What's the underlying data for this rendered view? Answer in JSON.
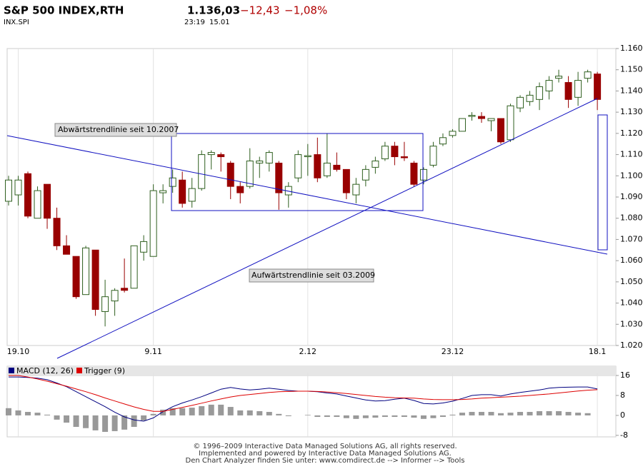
{
  "header": {
    "title": "S&P 500 INDEX,RTH",
    "symbol": "INX.SPI",
    "last": "1.136,03",
    "change": "−12,43",
    "change_pct": "−1,08%",
    "time": "23:19",
    "date": "15.01"
  },
  "chart_data": [
    {
      "type": "candlestick",
      "categories": [
        null,
        "19.10",
        null,
        null,
        null,
        null,
        null,
        null,
        null,
        null,
        null,
        null,
        null,
        null,
        null,
        "9.11",
        null,
        null,
        null,
        null,
        null,
        null,
        null,
        null,
        null,
        null,
        null,
        null,
        null,
        null,
        null,
        "2.12",
        null,
        null,
        null,
        null,
        null,
        null,
        null,
        null,
        null,
        null,
        null,
        null,
        null,
        null,
        "23.12",
        null,
        null,
        null,
        null,
        null,
        null,
        null,
        null,
        null,
        null,
        null,
        null,
        null,
        null,
        "18.1"
      ],
      "open": [
        1088,
        1091,
        1101,
        1080,
        1096,
        1080,
        1067,
        1062,
        1044,
        1065,
        1036,
        1041,
        1047,
        1047,
        1064,
        1062,
        1092,
        1095,
        1098,
        1088,
        1094,
        1110,
        1110,
        1106,
        1095,
        1095,
        1106,
        1106,
        1106,
        1091,
        1099,
        1109,
        1110,
        1100,
        1105,
        1103,
        1091,
        1098,
        1104,
        1108,
        1114,
        1109,
        1106,
        1098,
        1105,
        1115,
        1119,
        1121,
        1128,
        1128,
        1126,
        1127,
        1117,
        1132,
        1135,
        1136,
        1140,
        1146,
        1144,
        1137,
        1146,
        1148
      ],
      "high": [
        1100,
        1100,
        1102,
        1095,
        1096,
        1085,
        1072,
        1062,
        1067,
        1065,
        1051,
        1047,
        1061,
        1067,
        1072,
        1096,
        1096,
        1103,
        1102,
        1099,
        1112,
        1112,
        1111,
        1107,
        1097,
        1113,
        1109,
        1112,
        1107,
        1097,
        1112,
        1115,
        1118,
        1120,
        1111,
        1103,
        1099,
        1105,
        1109,
        1116,
        1116,
        1116,
        1107,
        1104,
        1116,
        1120,
        1122,
        1127,
        1130,
        1130,
        1127,
        1127,
        1134,
        1138,
        1140,
        1144,
        1147,
        1150,
        1147,
        1149,
        1150,
        1149
      ],
      "low": [
        1086,
        1086,
        1080,
        1080,
        1075,
        1065,
        1063,
        1042,
        1044,
        1034,
        1029,
        1034,
        1045,
        1047,
        1060,
        1062,
        1087,
        1092,
        1085,
        1085,
        1093,
        1103,
        1102,
        1089,
        1087,
        1094,
        1099,
        1102,
        1084,
        1085,
        1097,
        1100,
        1097,
        1099,
        1102,
        1089,
        1087,
        1095,
        1101,
        1107,
        1105,
        1107,
        1095,
        1096,
        1104,
        1114,
        1118,
        1121,
        1126,
        1125,
        1121,
        1115,
        1116,
        1130,
        1133,
        1131,
        1136,
        1144,
        1132,
        1133,
        1144,
        1131
      ],
      "close": [
        1098,
        1098,
        1081,
        1093,
        1080,
        1067,
        1063,
        1043,
        1066,
        1037,
        1043,
        1046,
        1046,
        1067,
        1069,
        1093,
        1093,
        1099,
        1087,
        1094,
        1110,
        1111,
        1109,
        1095,
        1092,
        1107,
        1107,
        1111,
        1092,
        1095,
        1110,
        1109.5,
        1099,
        1106,
        1103,
        1092,
        1096,
        1103,
        1107,
        1114,
        1109,
        1108.5,
        1096,
        1103,
        1114,
        1118,
        1121,
        1127,
        1128.5,
        1127,
        1127,
        1116,
        1133,
        1137,
        1138,
        1142,
        1145,
        1147,
        1136,
        1145,
        1149,
        1136
      ],
      "up_color": "#2f5f1f",
      "down_color": "#990000",
      "ylim": [
        1020,
        1160
      ],
      "yticks": [
        {
          "value": 1020,
          "label": "1.020"
        },
        {
          "value": 1030,
          "label": "1.030"
        },
        {
          "value": 1040,
          "label": "1.040"
        },
        {
          "value": 1050,
          "label": "1.050"
        },
        {
          "value": 1060,
          "label": "1.060"
        },
        {
          "value": 1070,
          "label": "1.070"
        },
        {
          "value": 1080,
          "label": "1.080"
        },
        {
          "value": 1090,
          "label": "1.090"
        },
        {
          "value": 1100,
          "label": "1.100"
        },
        {
          "value": 1110,
          "label": "1.110"
        },
        {
          "value": 1120,
          "label": "1.120"
        },
        {
          "value": 1130,
          "label": "1.130"
        },
        {
          "value": 1140,
          "label": "1.140"
        },
        {
          "value": 1150,
          "label": "1.150"
        },
        {
          "value": 1160,
          "label": "1.160"
        }
      ],
      "grid": "x",
      "annotations": [
        "Abwärtstrendlinie seit 10.2007",
        "Aufwärtstrendlinie seit 03.2009"
      ]
    },
    {
      "type": "macd",
      "series": [
        {
          "name": "MACD (12, 26)",
          "color": "#000080",
          "values": [
            15.4,
            15.4,
            15.2,
            14.9,
            14.3,
            13,
            11.5,
            9.5,
            7.5,
            5.5,
            3.5,
            1.3,
            -0.6,
            -1.8,
            -2.3,
            -1,
            1.5,
            3.5,
            5,
            6.2,
            7.5,
            9,
            10.5,
            11.2,
            10.6,
            10.2,
            10.5,
            10.9,
            10.5,
            10,
            9.7,
            9.7,
            9.5,
            9,
            8.6,
            7.8,
            7,
            6.2,
            5.8,
            5.9,
            6.5,
            6.9,
            6,
            4.8,
            4.6,
            5,
            5.7,
            6.8,
            8,
            8.3,
            8.3,
            7.8,
            8.6,
            9.2,
            9.7,
            10.2,
            10.9,
            11.2,
            11.3,
            11.4,
            11.4,
            10.6
          ]
        },
        {
          "name": "Trigger (9)",
          "color": "#dd0000",
          "values": [
            16,
            16,
            15.4,
            14.6,
            13.7,
            12.7,
            11.7,
            10.6,
            9.5,
            8.3,
            7,
            5.8,
            4.6,
            3.4,
            2.4,
            1.6,
            1.6,
            2.4,
            3.2,
            4,
            4.9,
            5.8,
            6.6,
            7.4,
            8,
            8.4,
            8.8,
            9.2,
            9.5,
            9.6,
            9.7,
            9.7,
            9.6,
            9.4,
            9.1,
            8.8,
            8.4,
            8,
            7.6,
            7.3,
            7.1,
            7,
            6.9,
            6.6,
            6.4,
            6.3,
            6.3,
            6.4,
            6.6,
            6.9,
            7.1,
            7.3,
            7.5,
            7.7,
            8,
            8.3,
            8.6,
            9,
            9.4,
            9.8,
            10.1,
            10.3
          ]
        }
      ],
      "histogram": {
        "color": "#999999",
        "values": [
          2.9,
          2,
          1.4,
          1.1,
          0.3,
          -1.7,
          -2.9,
          -4.6,
          -5.1,
          -6,
          -6.6,
          -6.3,
          -5.7,
          -4.6,
          -2,
          0.6,
          2.3,
          2.9,
          2.9,
          3.1,
          3.7,
          4.3,
          4.3,
          3.4,
          2,
          2,
          1.7,
          1.4,
          0.6,
          -0.3,
          0,
          0.2,
          -0.6,
          -0.6,
          -0.6,
          -1.1,
          -1.4,
          -1.1,
          -0.9,
          -0.6,
          -0.6,
          -0.6,
          -0.9,
          -1.4,
          -1.1,
          -0.6,
          0.3,
          1.1,
          1.4,
          1.4,
          1.4,
          0.9,
          1.1,
          1.4,
          1.4,
          1.7,
          1.7,
          1.7,
          1.4,
          1.1,
          0.9,
          null
        ]
      },
      "ylim": [
        -8.6,
        17
      ],
      "yticks": [
        16,
        8,
        0,
        -8
      ],
      "grid": "x"
    }
  ],
  "footer": [
    "© 1996–2009 Interactive Data Managed Solutions AG, all rights reserved.",
    "Implemented and powered by Interactive Data Managed Solutions AG.",
    "Den Chart Analyzer finden Sie unter: www.comdirect.de --> Informer --> Tools"
  ]
}
